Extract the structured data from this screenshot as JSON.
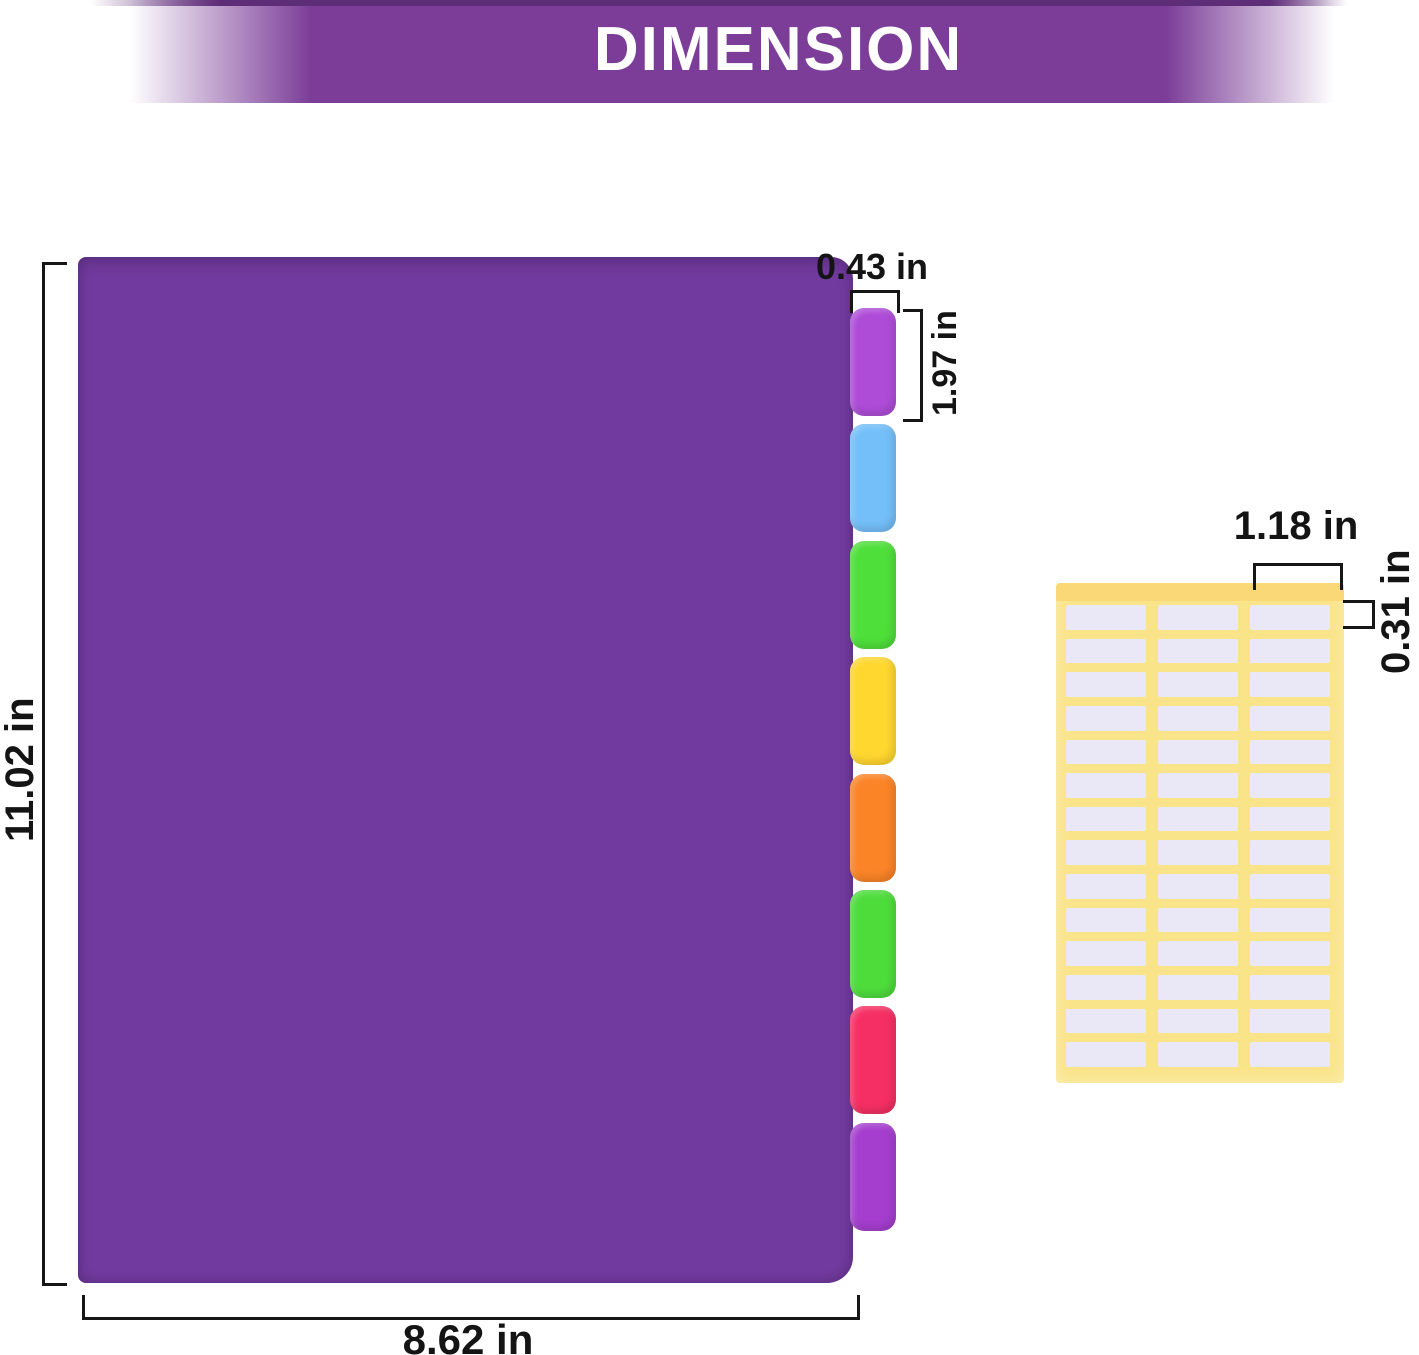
{
  "header": {
    "title": "DIMENSION",
    "banner_color": "#7b3d98",
    "strip_color": "#5e2d78",
    "text_color": "#ffffff"
  },
  "divider": {
    "sheet_color": "#713a9e",
    "height_label": "11.02 in",
    "width_label": "8.62 in",
    "tab_width_label": "0.43 in",
    "tab_height_label": "1.97 in",
    "tabs": [
      {
        "index": 1,
        "color": "#ae4cd8"
      },
      {
        "index": 2,
        "color": "#74bff9"
      },
      {
        "index": 3,
        "color": "#4fdf3a"
      },
      {
        "index": 4,
        "color": "#ffd72e"
      },
      {
        "index": 5,
        "color": "#fb8427"
      },
      {
        "index": 6,
        "color": "#4edc3b"
      },
      {
        "index": 7,
        "color": "#f52f63"
      },
      {
        "index": 8,
        "color": "#a53ecf"
      }
    ]
  },
  "label_sheet": {
    "sheet_color": "#fae489",
    "top_strip_color": "#fbd877",
    "label_color": "#eae8f6",
    "columns": 3,
    "rows": 14,
    "label_width_label": "1.18 in",
    "label_height_label": "0.31 in"
  }
}
